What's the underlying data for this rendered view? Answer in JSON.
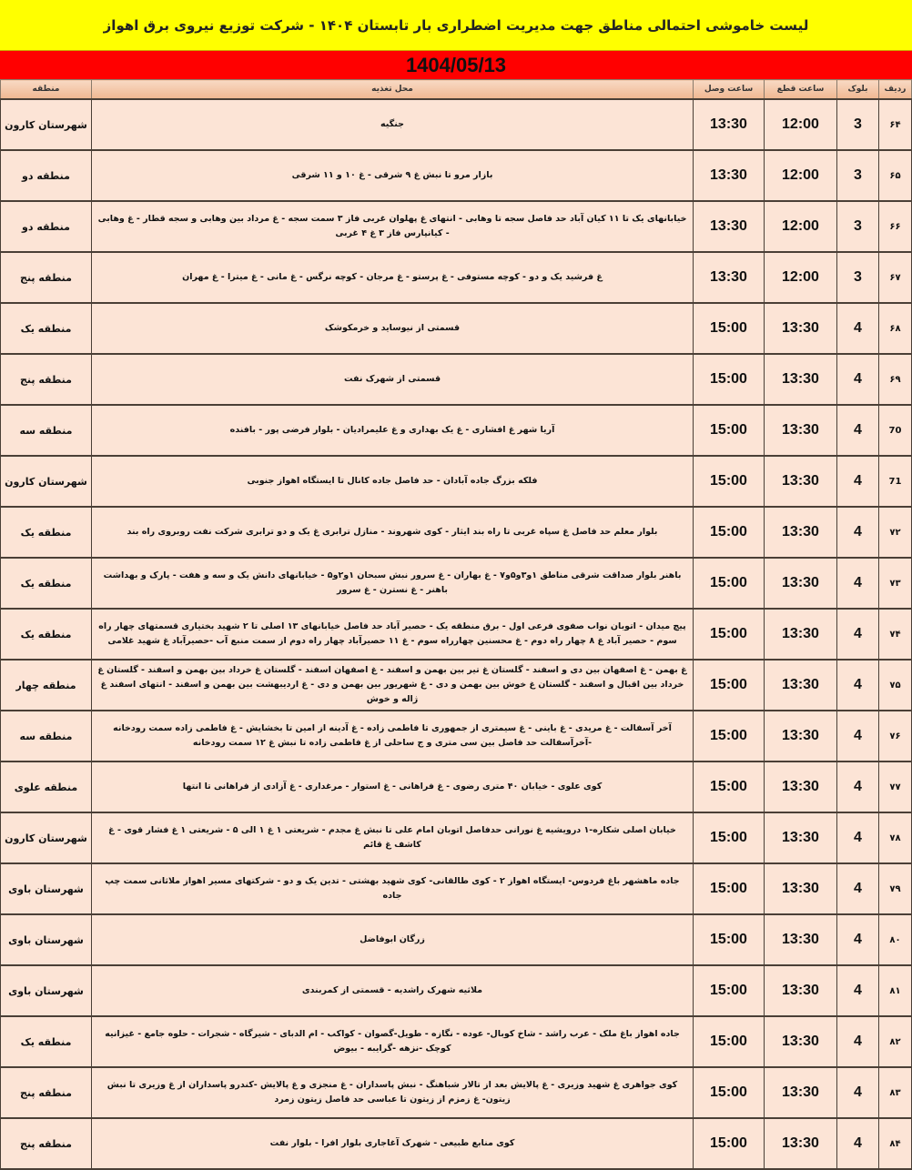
{
  "title": "لیست خاموشی احتمالی مناطق جهت مدیریت اضطراری بار تابستان ۱۴۰۴ - شرکت توزیع نیروی برق اهواز",
  "date": "1404/05/13",
  "headers": {
    "row": "ردیف",
    "block": "بلوک",
    "cut": "ساعت قطع",
    "connect": "ساعت وصل",
    "address": "محل تغذیه",
    "region": "منطقه"
  },
  "colors": {
    "title_bg": "#ffff00",
    "date_bg": "#ff0000",
    "row_bg": "#fce4d6"
  },
  "rows": [
    {
      "row": "۶۴",
      "block": "3",
      "cut": "12:00",
      "connect": "13:30",
      "address": "جنگیه",
      "region": "شهرستان کارون"
    },
    {
      "row": "۶۵",
      "block": "3",
      "cut": "12:00",
      "connect": "13:30",
      "address": "بازار مرو تا نبش غ ۹ شرقی - غ ۱۰ و ۱۱ شرقی",
      "region": "منطقه دو"
    },
    {
      "row": "۶۶",
      "block": "3",
      "cut": "12:00",
      "connect": "13:30",
      "address": "خیابانهای یک تا ۱۱ کیان آباد حد فاصل سجه تا وهابی - انتهای غ پهلوان غربی فاز ۳ سمت سجه - غ مرداد بین وهابی و سجه قطار - غ وهابی - کیانپارس فاز ۳ غ ۴ غربی",
      "region": "منطقه دو"
    },
    {
      "row": "۶۷",
      "block": "3",
      "cut": "12:00",
      "connect": "13:30",
      "address": "غ فرشید یک و دو - کوچه مستوفی - غ پرستو - غ مرجان - کوچه نرگس - غ مانی - غ میترا - غ مهران",
      "region": "منطقه پنج"
    },
    {
      "row": "۶۸",
      "block": "4",
      "cut": "13:30",
      "connect": "15:00",
      "address": "قسمتی از نیوساید و خرمکوشک",
      "region": "منطقه یک"
    },
    {
      "row": "۶۹",
      "block": "4",
      "cut": "13:30",
      "connect": "15:00",
      "address": "قسمتی از شهرک نفت",
      "region": "منطقه پنج"
    },
    {
      "row": "70",
      "block": "4",
      "cut": "13:30",
      "connect": "15:00",
      "address": "آریا شهر غ افشاری - غ یک بهداری و غ علیمرادیان - بلوار فرضی پور - بافنده",
      "region": "منطقه سه"
    },
    {
      "row": "71",
      "block": "4",
      "cut": "13:30",
      "connect": "15:00",
      "address": "فلکه بزرگ جاده آبادان - حد فاصل جاده کانال تا ایستگاه اهواز جنوبی",
      "region": "شهرستان کارون"
    },
    {
      "row": "۷۲",
      "block": "4",
      "cut": "13:30",
      "connect": "15:00",
      "address": "بلوار معلم حد فاصل غ سپاه غربی تا راه بند ایثار - کوی شهروند - منازل ترابری غ یک و دو ترابری شرکت نفت روبروی راه بند",
      "region": "منطقه یک"
    },
    {
      "row": "۷۳",
      "block": "4",
      "cut": "13:30",
      "connect": "15:00",
      "address": "باهنر بلوار صداقت شرقی مناطق ۱و۳و۵و۷ - غ بهاران - غ سرور نبش سبحان ۱و۲و۵ - خیابانهای دانش یک و سه و هفت - پارک و بهداشت باهنر - غ نسترن - غ سرور",
      "region": "منطقه یک"
    },
    {
      "row": "۷۴",
      "block": "4",
      "cut": "13:30",
      "connect": "15:00",
      "address": "پیچ میدان - اتوبان نواب صفوی فرعی اول - برق منطقه یک - حصیر آباد حد فاصل خیابانهای ۱۳ اصلی تا ۲ شهید بختیاری قسمتهای چهار راه سوم - حصیر آباد غ ۸ چهار راه دوم - غ محسنین چهارراه سوم - غ ۱۱ حصیرآباد چهار راه دوم از سمت منبع آب -حصیرآباد غ شهید غلامی",
      "region": "منطقه یک"
    },
    {
      "row": "۷۵",
      "block": "4",
      "cut": "13:30",
      "connect": "15:00",
      "address": "غ بهمن - غ اصفهان بین دی و اسفند - گلستان غ تیر بین بهمن و اسفند - غ اصفهان اسفند - گلستان غ خرداد بین بهمن و اسفند - گلستان غ خرداد بین اقبال و اسفند - گلستان غ خوش بین بهمن و دی - غ شهریور بین بهمن و دی - غ اردیبهشت بین بهمن و اسفند - انتهای اسفند غ ژاله و خوش",
      "region": "منطقه چهار"
    },
    {
      "row": "۷۶",
      "block": "4",
      "cut": "13:30",
      "connect": "15:00",
      "address": "آخر آسفالت - غ مریدی - غ باینی - غ سیمتری از جمهوری تا فاطمی زاده - غ آدینه از امین تا بخشایش - غ فاطمی زاده سمت رودخانه -آخرآسفالت حد فاصل بین سی متری و ج ساحلی از غ فاطمی زاده تا نبش غ ۱۲ سمت رودخانه",
      "region": "منطقه سه"
    },
    {
      "row": "۷۷",
      "block": "4",
      "cut": "13:30",
      "connect": "15:00",
      "address": "کوی علوی - خیابان ۴۰ متری رضوی - غ فراهانی - غ استوار - مرغداری - غ آزادی از فراهانی تا انتها",
      "region": "منطقه علوی"
    },
    {
      "row": "۷۸",
      "block": "4",
      "cut": "13:30",
      "connect": "15:00",
      "address": "خیابان اصلی شکاره-۱ درویشیه غ نورانی حدفاصل اتوبان امام علی تا نبش غ مجدم - شریعتی ۱ غ ۱ الی ۵ - شریعتی ۱ غ فشار قوی - غ کاشف غ قائم",
      "region": "شهرستان کارون"
    },
    {
      "row": "۷۹",
      "block": "4",
      "cut": "13:30",
      "connect": "15:00",
      "address": "جاده ماهشهر باغ فردوس- ایستگاه اهواز ۲ - کوی طالقانی- کوی شهید بهشتی - تدین یک و دو - شرکتهای مسیر اهواز ملاثانی سمت چپ جاده",
      "region": "شهرستان باوی"
    },
    {
      "row": "۸۰",
      "block": "4",
      "cut": "13:30",
      "connect": "15:00",
      "address": "زرگان ابوفاضل",
      "region": "شهرستان باوی"
    },
    {
      "row": "۸۱",
      "block": "4",
      "cut": "13:30",
      "connect": "15:00",
      "address": "ملاثیه شهرک راشدیه - قسمتی از کمربندی",
      "region": "شهرستان باوی"
    },
    {
      "row": "۸۲",
      "block": "4",
      "cut": "13:30",
      "connect": "15:00",
      "address": "جاده اهواز باغ ملک - عرب راشد - شاخ کوبال- عوده - نگازه - طویل-گصوان - کواکب - ام الدبای - شیرگاه - شجرات - حلوه جامع - غیزانیه کوچک -نزهه -گرایبه - بیوض",
      "region": "منطقه یک"
    },
    {
      "row": "۸۳",
      "block": "4",
      "cut": "13:30",
      "connect": "15:00",
      "address": "کوی جواهری غ شهید وزیری - غ پالایش بعد از تالار شباهنگ - نبش پاسداران - غ منجزی و غ پالایش -کندرو پاسداران از غ وزیری تا نبش زیتون- غ زمزم از زیتون تا عباسی حد فاصل زیتون زمرد",
      "region": "منطقه پنج"
    },
    {
      "row": "۸۴",
      "block": "4",
      "cut": "13:30",
      "connect": "15:00",
      "address": "کوی منابع طبیعی - شهرک آغاجاری بلوار افرا - بلوار نفت",
      "region": "منطقه پنج"
    }
  ]
}
